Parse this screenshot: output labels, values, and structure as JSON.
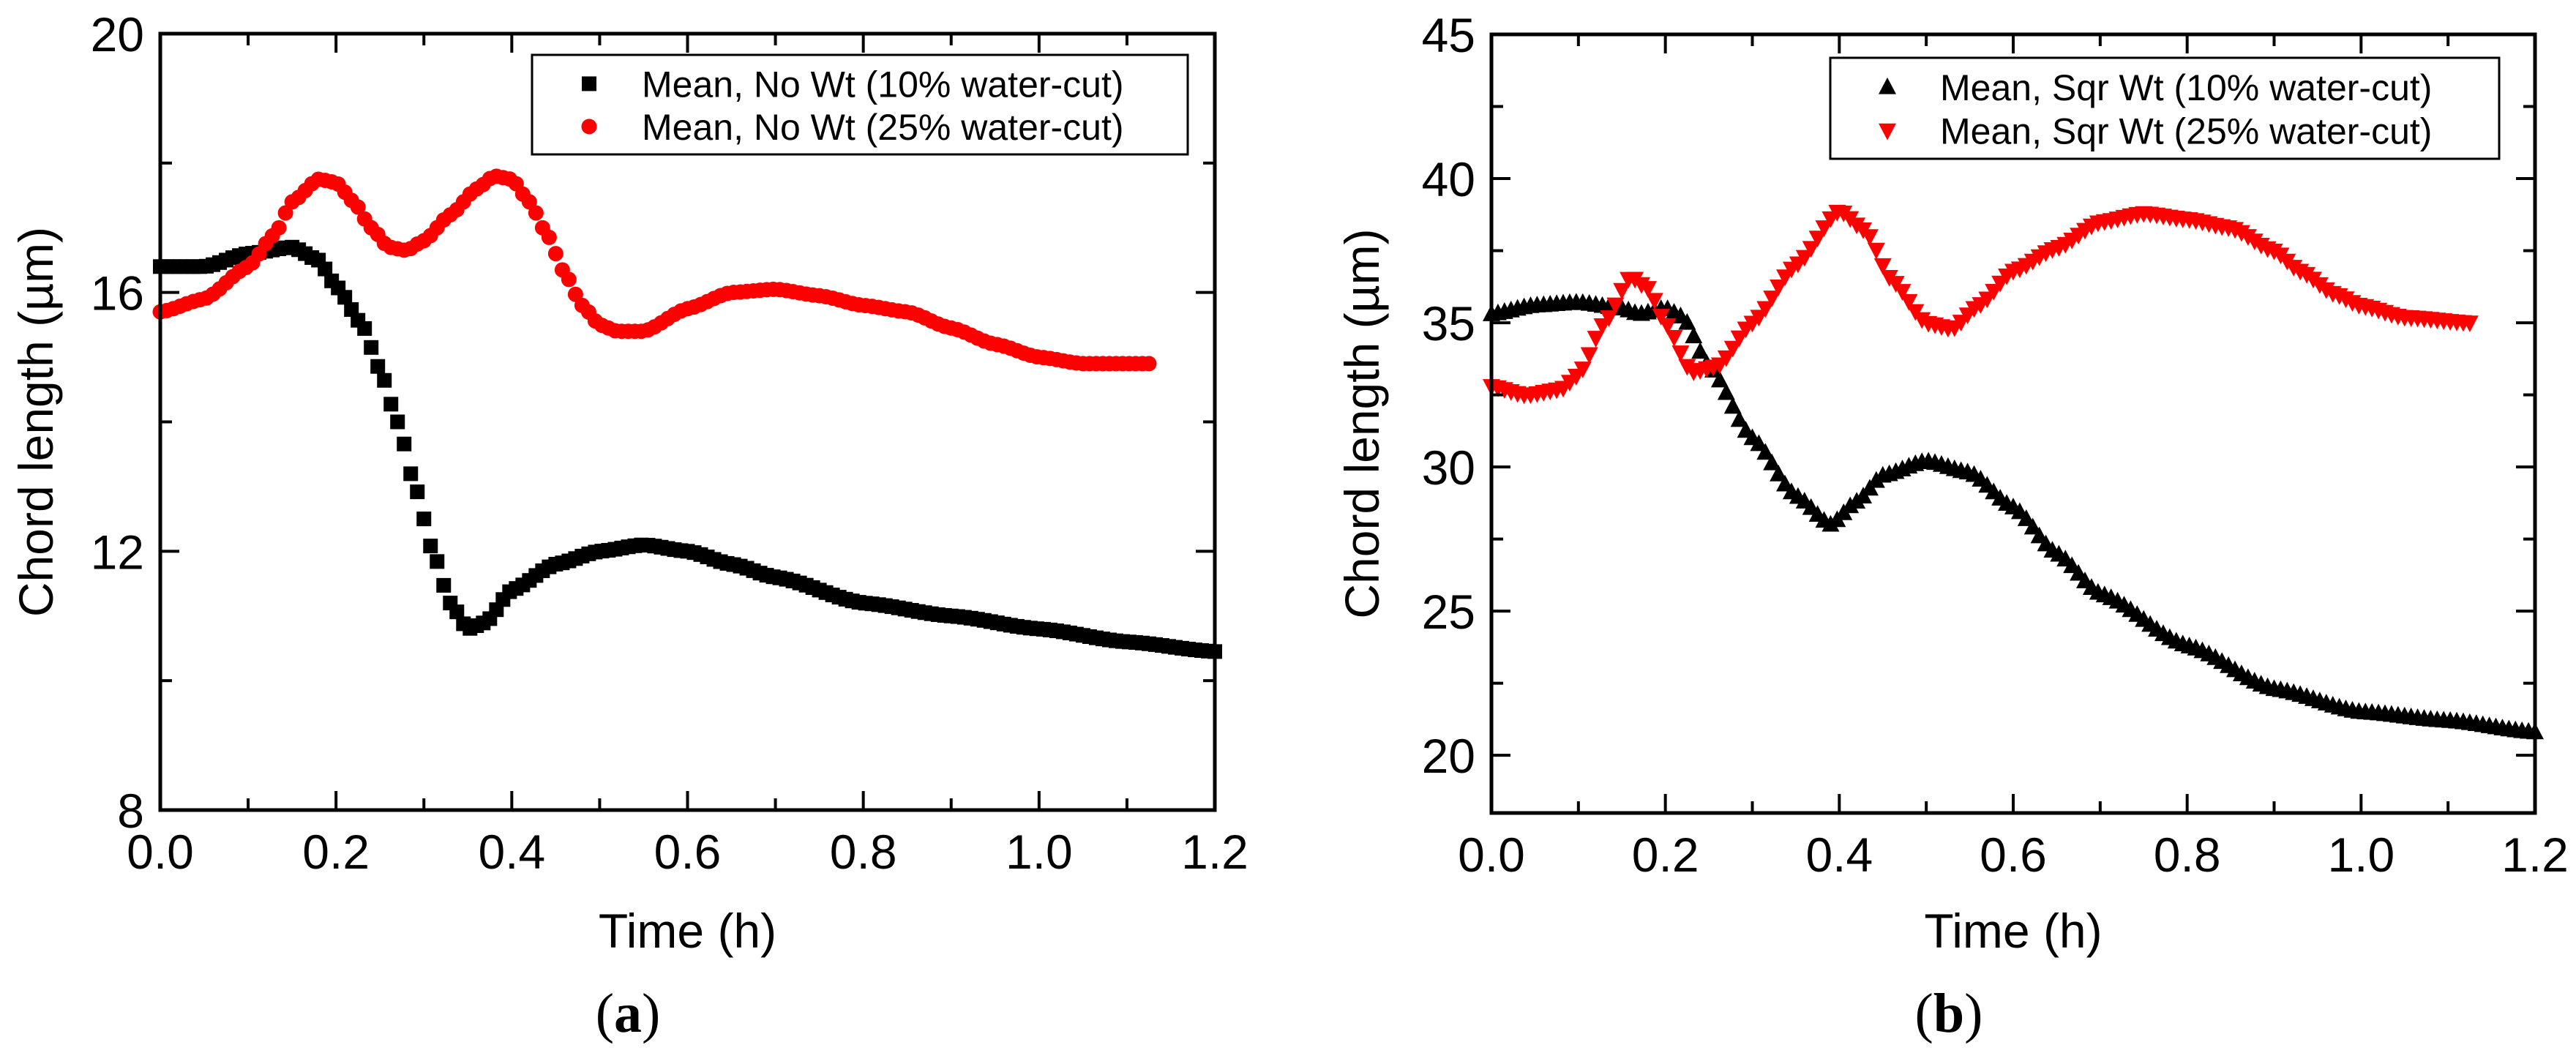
{
  "chart_data": [
    {
      "panel": "(a)",
      "panel_letter": "a",
      "type": "scatter",
      "xlabel": "Time (h)",
      "ylabel": "Chord length (µm)",
      "xlim": [
        0,
        1.2
      ],
      "ylim": [
        8,
        20
      ],
      "x_ticks": [
        "0.0",
        "0.2",
        "0.4",
        "0.6",
        "0.8",
        "1.0",
        "1.2"
      ],
      "x_tick_values": [
        0,
        0.2,
        0.4,
        0.6,
        0.8,
        1.0,
        1.2
      ],
      "y_ticks": [
        "8",
        "12",
        "16",
        "20"
      ],
      "y_tick_values": [
        8,
        12,
        16,
        20
      ],
      "y_minor_step": 2,
      "legend_position": "top-right",
      "series": [
        {
          "name": "Mean, No Wt (10% water-cut)",
          "marker": "square",
          "color": "#000000",
          "x": [
            0,
            0.05,
            0.1,
            0.15,
            0.18,
            0.2,
            0.23,
            0.25,
            0.27,
            0.29,
            0.31,
            0.33,
            0.35,
            0.37,
            0.4,
            0.45,
            0.5,
            0.55,
            0.6,
            0.65,
            0.7,
            0.8,
            0.9,
            1.0,
            1.1,
            1.2
          ],
          "y": [
            16.4,
            16.4,
            16.6,
            16.7,
            16.5,
            16.1,
            15.5,
            14.8,
            14.0,
            13.0,
            12.0,
            11.2,
            10.8,
            10.9,
            11.4,
            11.8,
            12.0,
            12.1,
            12.0,
            11.8,
            11.6,
            11.2,
            11.0,
            10.8,
            10.6,
            10.45
          ]
        },
        {
          "name": "Mean, No Wt (25% water-cut)",
          "marker": "circle",
          "color": "#ff0000",
          "x": [
            0,
            0.05,
            0.1,
            0.13,
            0.15,
            0.18,
            0.2,
            0.22,
            0.24,
            0.26,
            0.28,
            0.3,
            0.33,
            0.36,
            0.38,
            0.4,
            0.42,
            0.44,
            0.46,
            0.48,
            0.5,
            0.52,
            0.55,
            0.6,
            0.65,
            0.7,
            0.75,
            0.8,
            0.85,
            0.9,
            0.95,
            1.0,
            1.05,
            1.13
          ],
          "y": [
            15.7,
            15.9,
            16.4,
            16.9,
            17.4,
            17.75,
            17.7,
            17.4,
            17.0,
            16.7,
            16.65,
            16.8,
            17.2,
            17.6,
            17.8,
            17.75,
            17.4,
            16.9,
            16.3,
            15.8,
            15.5,
            15.4,
            15.4,
            15.75,
            16.0,
            16.05,
            15.95,
            15.8,
            15.7,
            15.45,
            15.2,
            15.0,
            14.9,
            14.9
          ]
        }
      ]
    },
    {
      "panel": "(b)",
      "panel_letter": "b",
      "type": "scatter",
      "xlabel": "Time (h)",
      "ylabel": "Chord length (µm)",
      "xlim": [
        0,
        1.2
      ],
      "ylim": [
        18,
        45
      ],
      "x_ticks": [
        "0.0",
        "0.2",
        "0.4",
        "0.6",
        "0.8",
        "1.0",
        "1.2"
      ],
      "x_tick_values": [
        0,
        0.2,
        0.4,
        0.6,
        0.8,
        1.0,
        1.2
      ],
      "y_ticks": [
        "20",
        "25",
        "30",
        "35",
        "40",
        "45"
      ],
      "y_tick_values": [
        20,
        25,
        30,
        35,
        40,
        45
      ],
      "y_minor_step": 2.5,
      "legend_position": "top-right",
      "series": [
        {
          "name": "Mean, Sqr Wt (10% water-cut)",
          "marker": "triangle-up",
          "color": "#000000",
          "x": [
            0,
            0.05,
            0.1,
            0.15,
            0.17,
            0.2,
            0.22,
            0.25,
            0.3,
            0.35,
            0.39,
            0.42,
            0.45,
            0.5,
            0.55,
            0.6,
            0.65,
            0.7,
            0.8,
            0.9,
            1.0,
            1.1,
            1.2
          ],
          "y": [
            35.3,
            35.6,
            35.7,
            35.5,
            35.3,
            35.5,
            35.2,
            33.5,
            31.0,
            29.0,
            28.0,
            28.8,
            29.7,
            30.2,
            29.8,
            28.6,
            27.0,
            25.6,
            23.8,
            22.3,
            21.5,
            21.2,
            20.8
          ]
        },
        {
          "name": "Mean, Sqr Wt (25% water-cut)",
          "marker": "triangle-down",
          "color": "#ff0000",
          "x": [
            0,
            0.04,
            0.08,
            0.1,
            0.13,
            0.16,
            0.18,
            0.2,
            0.23,
            0.26,
            0.3,
            0.35,
            0.4,
            0.43,
            0.46,
            0.5,
            0.53,
            0.56,
            0.6,
            0.65,
            0.7,
            0.75,
            0.8,
            0.85,
            0.9,
            0.93,
            0.97,
            1.0,
            1.05,
            1.13
          ],
          "y": [
            32.8,
            32.5,
            32.7,
            33.2,
            35.0,
            36.6,
            36.2,
            35.0,
            33.3,
            33.5,
            35.0,
            37.0,
            38.9,
            38.2,
            36.5,
            35.0,
            34.8,
            35.6,
            36.8,
            37.6,
            38.5,
            38.8,
            38.6,
            38.3,
            37.5,
            36.8,
            36.0,
            35.6,
            35.2,
            35.0
          ]
        }
      ]
    }
  ]
}
